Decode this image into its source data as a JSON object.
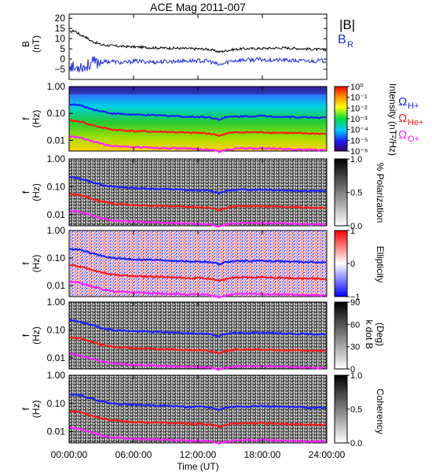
{
  "figure": {
    "title": "ACE Mag 2011-007",
    "xlabel": "Time (UT)",
    "xticks": [
      "00:00:00",
      "06:00:00",
      "12:00:00",
      "18:00:00",
      "24:00:00"
    ],
    "colors": {
      "bmag": "#000000",
      "br": "#1d2bd6",
      "cyclotron_h": "#1a22ff",
      "cyclotron_he": "#ff1a1a",
      "cyclotron_o": "#ff22ff"
    }
  },
  "chart_data": [
    {
      "type": "line",
      "panel": "magnetic-field",
      "ylabel_top": "B",
      "ylabel_bottom": "(nT)",
      "ylim": [
        -10,
        22
      ],
      "yticks": [
        "20",
        "15",
        "10",
        "5",
        "0",
        "−5"
      ],
      "x_range_hours": [
        0,
        24
      ],
      "series": [
        {
          "name": "|B|",
          "x_hours": [
            0,
            0.5,
            1,
            1.5,
            2,
            3,
            4,
            5,
            6,
            8,
            10,
            12,
            13,
            14,
            15,
            16,
            18,
            20,
            22,
            24
          ],
          "values": [
            13,
            14,
            12,
            11,
            9,
            7,
            6.5,
            6.2,
            6,
            5.5,
            5.3,
            5,
            4.8,
            3.5,
            4.5,
            5,
            5.2,
            5.5,
            5,
            4.5
          ]
        },
        {
          "name": "B_R",
          "x_hours": [
            0,
            0.5,
            1,
            1.5,
            2,
            3,
            4,
            5,
            6,
            8,
            10,
            12,
            13,
            14,
            15,
            16,
            18,
            20,
            22,
            24
          ],
          "values": [
            -2,
            -5,
            -3,
            -4,
            -2,
            -1.5,
            -1,
            -2,
            -1,
            -1.5,
            -1,
            -0.8,
            -1,
            -3,
            -1,
            -0.5,
            -0.3,
            -0.6,
            -1,
            -0.8
          ]
        }
      ],
      "legend": [
        "|B|",
        "B",
        "R"
      ]
    },
    {
      "type": "heatmap",
      "panel": "power-spectrum",
      "ylabel": "f (Hz)",
      "yscale": "log",
      "ylim": [
        0.004,
        1.0
      ],
      "yticks": [
        "1.00",
        "0.10",
        "0.01"
      ],
      "colorbar": {
        "label": "Intensity (nT²/Hz)",
        "ticks": [
          "10⁰",
          "10⁻¹",
          "10⁻²",
          "10⁻³",
          "10⁻⁴",
          "10⁻⁵",
          "10⁻⁶"
        ],
        "scale": "rainbow"
      },
      "legend": [
        "Ω",
        "H+",
        "Ω",
        "He+",
        "Ω",
        "O+"
      ]
    },
    {
      "type": "heatmap",
      "panel": "polarization",
      "ylabel": "f (Hz)",
      "yscale": "log",
      "yticks": [
        "1.00",
        "0.10",
        "0.01"
      ],
      "colorbar": {
        "label": "% Polarization",
        "ticks": [
          "1.0",
          "0.5",
          "0.0"
        ],
        "scale": "grayscale"
      }
    },
    {
      "type": "heatmap",
      "panel": "ellipticity",
      "ylabel": "f (Hz)",
      "yscale": "log",
      "yticks": [
        "1.00",
        "0.10",
        "0.01"
      ],
      "colorbar": {
        "label": "Ellipticity",
        "ticks": [
          "1",
          "0",
          "−1"
        ],
        "scale": "blue-white-red"
      }
    },
    {
      "type": "heatmap",
      "panel": "wave-normal-angle",
      "ylabel": "f (Hz)",
      "yscale": "log",
      "yticks": [
        "1.00",
        "0.10",
        "0.01"
      ],
      "colorbar": {
        "label_top": "k dot B",
        "label_bottom": "(Deg)",
        "ticks": [
          "90",
          "60",
          "30",
          "0"
        ],
        "scale": "grayscale"
      }
    },
    {
      "type": "heatmap",
      "panel": "coherency",
      "ylabel": "f (Hz)",
      "yscale": "log",
      "yticks": [
        "1.00",
        "0.10",
        "0.01"
      ],
      "colorbar": {
        "label": "Coherency",
        "ticks": [
          "1.0",
          "0.5",
          "0.0"
        ],
        "scale": "grayscale"
      }
    }
  ],
  "cyclotron_lines": {
    "x_hours": [
      0,
      1,
      2,
      3,
      4,
      6,
      8,
      10,
      11,
      12,
      13,
      14,
      14.5,
      15,
      16,
      18,
      20,
      22,
      24
    ],
    "h_plus_hz": [
      0.22,
      0.2,
      0.15,
      0.12,
      0.1,
      0.09,
      0.085,
      0.08,
      0.075,
      0.075,
      0.073,
      0.06,
      0.07,
      0.075,
      0.078,
      0.08,
      0.075,
      0.072,
      0.07
    ],
    "he_plus_hz": [
      0.055,
      0.05,
      0.038,
      0.03,
      0.025,
      0.022,
      0.021,
      0.02,
      0.019,
      0.019,
      0.018,
      0.015,
      0.017,
      0.019,
      0.02,
      0.02,
      0.019,
      0.018,
      0.0175
    ],
    "o_plus_hz": [
      0.014,
      0.0125,
      0.0095,
      0.0075,
      0.0062,
      0.0056,
      0.0053,
      0.005,
      0.0048,
      0.0047,
      0.0046,
      0.0038,
      0.0043,
      0.0047,
      0.005,
      0.005,
      0.0048,
      0.0045,
      0.0044
    ]
  }
}
